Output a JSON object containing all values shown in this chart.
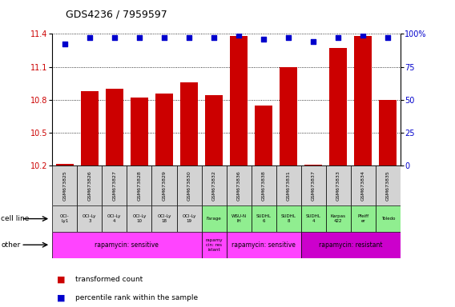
{
  "title": "GDS4236 / 7959597",
  "samples": [
    "GSM673825",
    "GSM673826",
    "GSM673827",
    "GSM673828",
    "GSM673829",
    "GSM673830",
    "GSM673832",
    "GSM673836",
    "GSM673838",
    "GSM673831",
    "GSM673837",
    "GSM673833",
    "GSM673834",
    "GSM673835"
  ],
  "bar_values": [
    10.22,
    10.88,
    10.9,
    10.82,
    10.86,
    10.96,
    10.84,
    11.38,
    10.75,
    11.1,
    10.21,
    11.27,
    11.38,
    10.8
  ],
  "percentile_values": [
    92,
    97,
    97,
    97,
    97,
    97,
    97,
    99,
    96,
    97,
    94,
    97,
    99,
    97
  ],
  "bar_color": "#cc0000",
  "dot_color": "#0000cc",
  "ylim_left": [
    10.2,
    11.4
  ],
  "ylim_right": [
    0,
    100
  ],
  "yticks_left": [
    10.2,
    10.5,
    10.8,
    11.1,
    11.4
  ],
  "yticks_right": [
    0,
    25,
    50,
    75,
    100
  ],
  "cell_lines": [
    "OCI-\nLy1",
    "OCI-Ly\n3",
    "OCI-Ly\n4",
    "OCI-Ly\n10",
    "OCI-Ly\n18",
    "OCI-Ly\n19",
    "Farage",
    "WSU-N\nIH",
    "SUDHL\n6",
    "SUDHL\n8",
    "SUDHL\n4",
    "Karpas\n422",
    "Pfeiff\ner",
    "Toledo"
  ],
  "cell_line_colors": [
    "#d3d3d3",
    "#d3d3d3",
    "#d3d3d3",
    "#d3d3d3",
    "#d3d3d3",
    "#d3d3d3",
    "#90ee90",
    "#90ee90",
    "#90ee90",
    "#90ee90",
    "#90ee90",
    "#90ee90",
    "#90ee90",
    "#90ee90"
  ],
  "other_spans": [
    {
      "label": "rapamycin: sensitive",
      "start": 0,
      "end": 5,
      "color": "#ff44ff"
    },
    {
      "label": "rapamy\ncin: res\nistant",
      "start": 6,
      "end": 6,
      "color": "#ff44ff"
    },
    {
      "label": "rapamycin: sensitive",
      "start": 7,
      "end": 9,
      "color": "#ff44ff"
    },
    {
      "label": "rapamycin: resistant",
      "start": 10,
      "end": 13,
      "color": "#cc00cc"
    }
  ],
  "background_color": "#ffffff"
}
